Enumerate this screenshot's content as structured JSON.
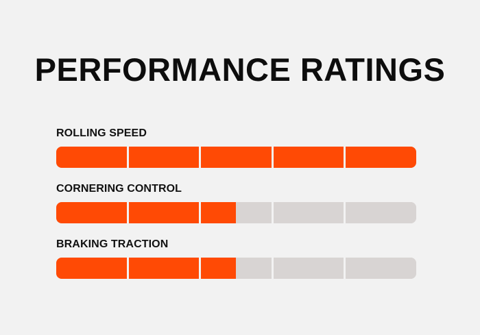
{
  "title": "PERFORMANCE RATINGS",
  "colors": {
    "background": "#f2f2f2",
    "filled": "#ff4a05",
    "empty": "#d8d4d3",
    "text": "#111111"
  },
  "ratings": [
    {
      "label": "ROLLING SPEED",
      "value": 5,
      "max": 5
    },
    {
      "label": "CORNERING CONTROL",
      "value": 2.5,
      "max": 5
    },
    {
      "label": "BRAKING TRACTION",
      "value": 2.5,
      "max": 5
    }
  ]
}
